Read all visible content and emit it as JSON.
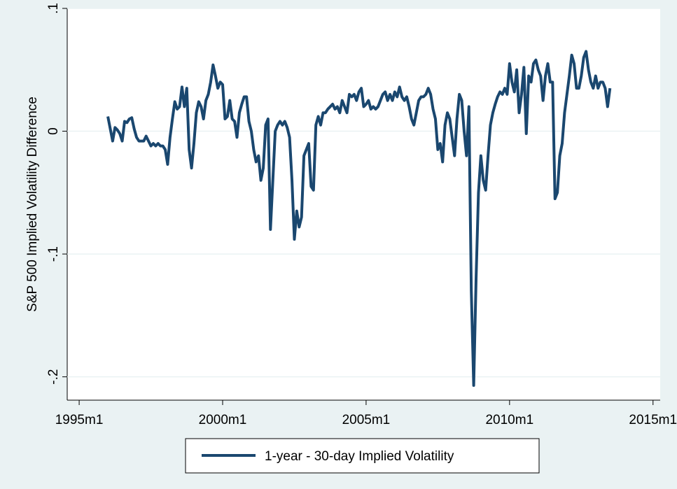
{
  "chart_data": {
    "type": "line",
    "y_label": "S&P 500 Implied Volatility Difference",
    "x": [
      432,
      433,
      434,
      435,
      436,
      437,
      438,
      439,
      440,
      441,
      442,
      443,
      444,
      445,
      446,
      447,
      448,
      449,
      450,
      451,
      452,
      453,
      454,
      455,
      456,
      457,
      458,
      459,
      460,
      461,
      462,
      463,
      464,
      465,
      466,
      467,
      468,
      469,
      470,
      471,
      472,
      473,
      474,
      475,
      476,
      477,
      478,
      479,
      480,
      481,
      482,
      483,
      484,
      485,
      486,
      487,
      488,
      489,
      490,
      491,
      492,
      493,
      494,
      495,
      496,
      497,
      498,
      499,
      500,
      501,
      502,
      503,
      504,
      505,
      506,
      507,
      508,
      509,
      510,
      511,
      512,
      513,
      514,
      515,
      516,
      517,
      518,
      519,
      520,
      521,
      522,
      523,
      524,
      525,
      526,
      527,
      528,
      529,
      530,
      531,
      532,
      533,
      534,
      535,
      536,
      537,
      538,
      539,
      540,
      541,
      542,
      543,
      544,
      545,
      546,
      547,
      548,
      549,
      550,
      551,
      552,
      553,
      554,
      555,
      556,
      557,
      558,
      559,
      560,
      561,
      562,
      563,
      564,
      565,
      566,
      567,
      568,
      569,
      570,
      571,
      572,
      573,
      574,
      575,
      576,
      577,
      578,
      579,
      580,
      581,
      582,
      583,
      584,
      585,
      586,
      587,
      588,
      589,
      590,
      591,
      592,
      593,
      594,
      595,
      596,
      597,
      598,
      599,
      600,
      601,
      602,
      603,
      604,
      605,
      606,
      607,
      608,
      609,
      610,
      611,
      612,
      613,
      614,
      615,
      616,
      617,
      618,
      619,
      620,
      621,
      622,
      623,
      624,
      625,
      626,
      627,
      628,
      629,
      630,
      631,
      632,
      633,
      634,
      635,
      636,
      637,
      638,
      639,
      640,
      641,
      642
    ],
    "series": [
      {
        "name": "1-year - 30-day Implied Volatility",
        "color": "#1a476f",
        "values": [
          0.012,
          0.002,
          -0.008,
          0.003,
          0.001,
          -0.002,
          -0.008,
          0.008,
          0.007,
          0.01,
          0.011,
          0.002,
          -0.005,
          -0.008,
          -0.008,
          -0.008,
          -0.004,
          -0.008,
          -0.012,
          -0.01,
          -0.012,
          -0.01,
          -0.012,
          -0.012,
          -0.015,
          -0.027,
          -0.005,
          0.01,
          0.024,
          0.018,
          0.02,
          0.036,
          0.02,
          0.035,
          -0.015,
          -0.03,
          -0.01,
          0.015,
          0.024,
          0.02,
          0.01,
          0.025,
          0.03,
          0.04,
          0.054,
          0.045,
          0.035,
          0.04,
          0.038,
          0.01,
          0.012,
          0.025,
          0.01,
          0.008,
          -0.005,
          0.015,
          0.022,
          0.028,
          0.028,
          0.008,
          0.0,
          -0.015,
          -0.025,
          -0.02,
          -0.04,
          -0.03,
          0.005,
          0.01,
          -0.08,
          -0.04,
          0.0,
          0.005,
          0.008,
          0.005,
          0.008,
          0.003,
          -0.005,
          -0.04,
          -0.088,
          -0.065,
          -0.078,
          -0.07,
          -0.02,
          -0.015,
          -0.01,
          -0.045,
          -0.048,
          0.005,
          0.012,
          0.005,
          0.015,
          0.015,
          0.018,
          0.02,
          0.022,
          0.018,
          0.02,
          0.015,
          0.025,
          0.02,
          0.015,
          0.03,
          0.028,
          0.03,
          0.025,
          0.032,
          0.035,
          0.02,
          0.022,
          0.025,
          0.018,
          0.02,
          0.018,
          0.02,
          0.025,
          0.03,
          0.032,
          0.025,
          0.03,
          0.025,
          0.032,
          0.028,
          0.036,
          0.028,
          0.025,
          0.028,
          0.02,
          0.01,
          0.005,
          0.015,
          0.025,
          0.028,
          0.028,
          0.03,
          0.035,
          0.03,
          0.018,
          0.01,
          -0.015,
          -0.01,
          -0.025,
          0.005,
          0.015,
          0.01,
          -0.005,
          -0.02,
          0.01,
          0.03,
          0.025,
          0.0,
          -0.02,
          0.02,
          -0.13,
          -0.207,
          -0.12,
          -0.05,
          -0.02,
          -0.04,
          -0.048,
          -0.02,
          0.005,
          0.015,
          0.022,
          0.028,
          0.032,
          0.03,
          0.035,
          0.03,
          0.055,
          0.04,
          0.032,
          0.05,
          0.015,
          0.03,
          0.052,
          -0.002,
          0.045,
          0.04,
          0.055,
          0.058,
          0.05,
          0.045,
          0.025,
          0.045,
          0.055,
          0.04,
          0.04,
          -0.055,
          -0.05,
          -0.02,
          -0.01,
          0.015,
          0.03,
          0.045,
          0.062,
          0.055,
          0.035,
          0.035,
          0.045,
          0.06,
          0.065,
          0.05,
          0.04,
          0.035,
          0.045,
          0.035,
          0.04,
          0.04,
          0.035,
          0.02,
          0.035
        ]
      }
    ],
    "xlim": [
      415,
      663
    ],
    "ylim": [
      -0.219,
      0.1
    ],
    "xticks": [
      {
        "value": 420,
        "label": "1995m1"
      },
      {
        "value": 480,
        "label": "2000m1"
      },
      {
        "value": 540,
        "label": "2005m1"
      },
      {
        "value": 600,
        "label": "2010m1"
      },
      {
        "value": 660,
        "label": "2015m1"
      }
    ],
    "yticks": [
      {
        "value": -0.2,
        "label": "-.2"
      },
      {
        "value": -0.1,
        "label": "-.1"
      },
      0,
      {
        "value": 0.1,
        "label": ".1"
      }
    ],
    "grid": true
  }
}
